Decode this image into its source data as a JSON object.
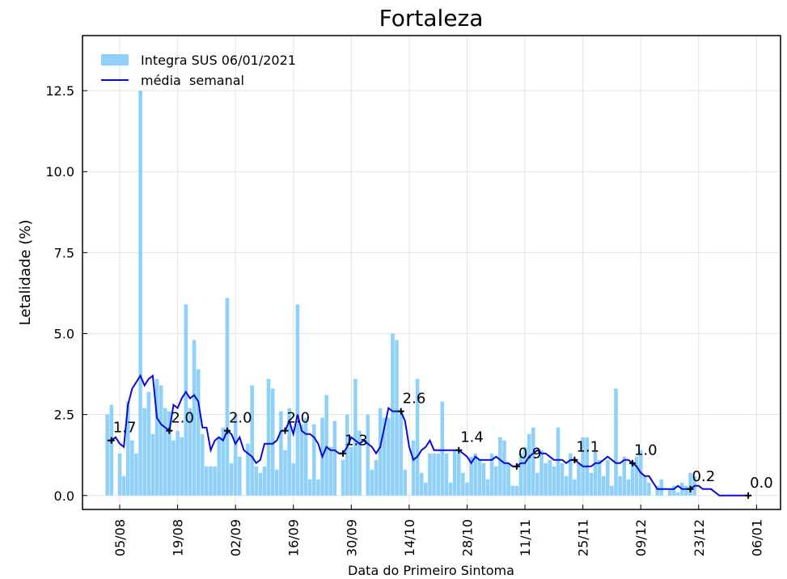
{
  "chart_data": {
    "type": "bar-line",
    "title": "Fortaleza",
    "xlabel": "Data do Primeiro Sintoma",
    "ylabel": "Letalidade (%)",
    "categories": [
      null,
      null,
      null,
      null,
      null,
      "05/08",
      null,
      null,
      null,
      null,
      null,
      null,
      null,
      null,
      null,
      null,
      null,
      null,
      null,
      "19/08",
      null,
      null,
      null,
      null,
      null,
      null,
      null,
      null,
      null,
      null,
      null,
      null,
      null,
      "02/09",
      null,
      null,
      null,
      null,
      null,
      null,
      null,
      null,
      null,
      null,
      null,
      null,
      null,
      "16/09",
      null,
      null,
      null,
      null,
      null,
      null,
      null,
      null,
      null,
      null,
      null,
      null,
      null,
      "30/09",
      null,
      null,
      null,
      null,
      null,
      null,
      null,
      null,
      null,
      null,
      null,
      null,
      null,
      "14/10",
      null,
      null,
      null,
      null,
      null,
      null,
      null,
      null,
      null,
      null,
      null,
      null,
      null,
      "28/10",
      null,
      null,
      null,
      null,
      null,
      null,
      null,
      null,
      null,
      null,
      null,
      null,
      null,
      "11/11",
      null,
      null,
      null,
      null,
      null,
      null,
      null,
      null,
      null,
      null,
      null,
      null,
      null,
      "25/11",
      null,
      null,
      null,
      null,
      null,
      null,
      null,
      null,
      null,
      null,
      null,
      null,
      null,
      "09/12",
      null,
      null,
      null,
      null,
      null,
      null,
      null,
      null,
      null,
      null,
      null,
      null,
      null,
      "23/12",
      null,
      null,
      null,
      null,
      null,
      null,
      null,
      null,
      null,
      null,
      null,
      null,
      null,
      "06/01"
    ],
    "series": [
      {
        "name": "Integra SUS 06/01/2021",
        "kind": "bar",
        "color": "#8fd1f8",
        "values": [
          null,
          null,
          2.5,
          2.8,
          0,
          1.3,
          0.6,
          2.9,
          1.7,
          1.3,
          12.5,
          2.7,
          3.2,
          1.9,
          3.6,
          3.4,
          2.7,
          2.6,
          1.7,
          2.0,
          1.8,
          5.9,
          2.7,
          4.8,
          3.9,
          1.9,
          0.9,
          0.9,
          0.9,
          1.8,
          2.1,
          6.1,
          1.0,
          2.5,
          1.2,
          0,
          1.6,
          3.4,
          0.9,
          0.7,
          0.9,
          3.6,
          3.3,
          0.8,
          2.6,
          1.4,
          2.7,
          1.0,
          5.9,
          2.2,
          2.4,
          0.5,
          2.2,
          0.5,
          2.4,
          3.1,
          1.5,
          2.3,
          0,
          1.1,
          2.5,
          1.5,
          3.6,
          2.0,
          0,
          2.5,
          0.8,
          1.1,
          2.7,
          2.4,
          2.4,
          5.0,
          4.8,
          2.5,
          0.8,
          0,
          1.7,
          3.6,
          0.7,
          0.4,
          1.3,
          1.3,
          1.3,
          2.9,
          1.3,
          0.4,
          1.4,
          1.3,
          0.7,
          0.4,
          1.2,
          1.3,
          1.1,
          1.0,
          0.5,
          1.3,
          0.9,
          1.8,
          1.7,
          1.0,
          0.3,
          0.3,
          1.3,
          1.5,
          1.9,
          2.1,
          0.7,
          1.4,
          1.0,
          1.1,
          0.9,
          2.1,
          1.0,
          0.6,
          1.3,
          0.5,
          1.0,
          1.8,
          1.8,
          0.7,
          1.4,
          1.1,
          0.6,
          1.1,
          0.3,
          3.3,
          0.6,
          1.2,
          0.5,
          1.0,
          1.2,
          1.4,
          0.6,
          0.4,
          0,
          0.3,
          0.5,
          0,
          0.2,
          0.3,
          0.1,
          0.4,
          0.3,
          0.7,
          0.6,
          0,
          0,
          0,
          0,
          0,
          0,
          0,
          0,
          0,
          0,
          0,
          0,
          0,
          null,
          null
        ]
      },
      {
        "name": "média  semanal",
        "kind": "line",
        "color": "#0a0adc",
        "values": [
          null,
          null,
          1.7,
          1.7,
          1.8,
          1.6,
          1.5,
          2.8,
          3.3,
          3.5,
          3.7,
          3.4,
          3.6,
          3.7,
          2.4,
          2.2,
          2.1,
          2.0,
          2.8,
          2.7,
          3.0,
          3.2,
          3.0,
          3.1,
          2.9,
          2.1,
          2.1,
          1.4,
          1.7,
          1.8,
          1.7,
          2.0,
          1.9,
          1.6,
          1.8,
          1.4,
          1.3,
          1.2,
          1.0,
          1.1,
          1.6,
          1.6,
          1.6,
          1.7,
          2.0,
          2.0,
          2.3,
          1.9,
          2.5,
          2.0,
          1.9,
          1.9,
          1.8,
          1.6,
          1.2,
          1.5,
          1.4,
          1.4,
          1.3,
          1.3,
          1.5,
          1.8,
          1.7,
          1.6,
          1.7,
          1.6,
          1.5,
          1.3,
          1.5,
          2.1,
          2.7,
          2.6,
          2.6,
          2.6,
          2.3,
          1.5,
          1.1,
          1.2,
          1.4,
          1.5,
          1.7,
          1.4,
          1.4,
          1.4,
          1.4,
          1.4,
          1.4,
          1.4,
          1.3,
          1.2,
          1.0,
          1.2,
          1.1,
          1.1,
          1.1,
          1.1,
          1.2,
          1.1,
          1.0,
          1.0,
          0.9,
          0.9,
          1.0,
          1.0,
          1.2,
          1.3,
          1.4,
          1.3,
          1.3,
          1.2,
          1.1,
          1.1,
          1.1,
          1.0,
          1.1,
          1.1,
          1.0,
          0.9,
          0.9,
          0.9,
          1.0,
          1.0,
          1.1,
          1.2,
          1.1,
          1.0,
          1.0,
          1.1,
          1.1,
          1.0,
          0.9,
          0.7,
          0.6,
          0.6,
          0.4,
          0.2,
          0.2,
          0.2,
          0.2,
          0.2,
          0.3,
          0.2,
          0.2,
          0.2,
          0.3,
          0.3,
          0.2,
          0.2,
          0.2,
          0.1,
          0,
          0,
          0,
          0,
          0,
          0,
          0,
          0,
          null,
          null
        ]
      }
    ],
    "annotations": [
      {
        "x": 3,
        "label": "1.7"
      },
      {
        "x": 17,
        "label": "2.0"
      },
      {
        "x": 31,
        "label": "2.0"
      },
      {
        "x": 45,
        "label": "2.0"
      },
      {
        "x": 59,
        "label": "1.3"
      },
      {
        "x": 73,
        "label": "2.6"
      },
      {
        "x": 87,
        "label": "1.4"
      },
      {
        "x": 101,
        "label": "0.9"
      },
      {
        "x": 115,
        "label": "1.1"
      },
      {
        "x": 129,
        "label": "1.0"
      },
      {
        "x": 143,
        "label": "0.2"
      },
      {
        "x": 157,
        "label": "0.0"
      }
    ],
    "ylim": [
      -0.43,
      14.2
    ],
    "yticks": [
      {
        "value": 0,
        "label": "0.0"
      },
      2.5,
      {
        "value": 5,
        "label": "5.0"
      },
      7.5,
      {
        "value": 10,
        "label": "10.0"
      },
      12.5
    ],
    "grid": true,
    "legend": "upper left"
  }
}
